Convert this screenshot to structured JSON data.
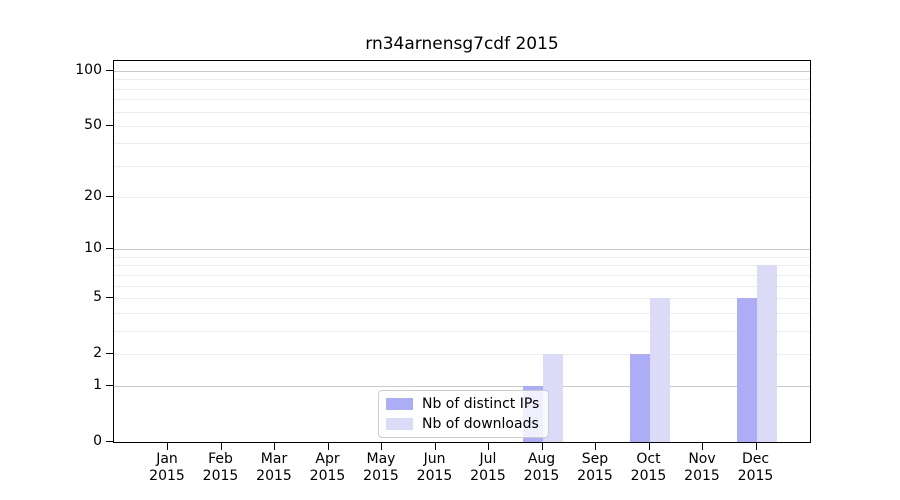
{
  "chart_data": {
    "type": "bar",
    "title": "rn34arnensg7cdf 2015",
    "year_label": "2015",
    "categories": [
      "Jan",
      "Feb",
      "Mar",
      "Apr",
      "May",
      "Jun",
      "Jul",
      "Aug",
      "Sep",
      "Oct",
      "Nov",
      "Dec"
    ],
    "series": [
      {
        "name": "Nb of distinct IPs",
        "color": "#adadf5",
        "values": [
          0,
          0,
          0,
          0,
          0,
          0,
          0,
          1,
          0,
          2,
          0,
          5
        ]
      },
      {
        "name": "Nb of downloads",
        "color": "#dbdbf8",
        "values": [
          0,
          0,
          0,
          0,
          0,
          0,
          0,
          2,
          0,
          5,
          0,
          8
        ]
      }
    ],
    "y_axis": {
      "scale": "log10(1+y)",
      "tick_values": [
        0,
        1,
        2,
        5,
        10,
        20,
        50,
        100
      ],
      "tick_labels": [
        "0",
        "1",
        "2",
        "5",
        "10",
        "20",
        "50",
        "100"
      ],
      "major_gridlines": [
        1,
        10,
        100
      ],
      "minor_gridlines": [
        2,
        3,
        4,
        5,
        6,
        7,
        8,
        9,
        20,
        30,
        40,
        50,
        60,
        70,
        80,
        90
      ],
      "ylim": [
        0,
        113
      ]
    },
    "xlabel": "",
    "ylabel": "",
    "grid": true,
    "legend_position": "lower center-left"
  }
}
